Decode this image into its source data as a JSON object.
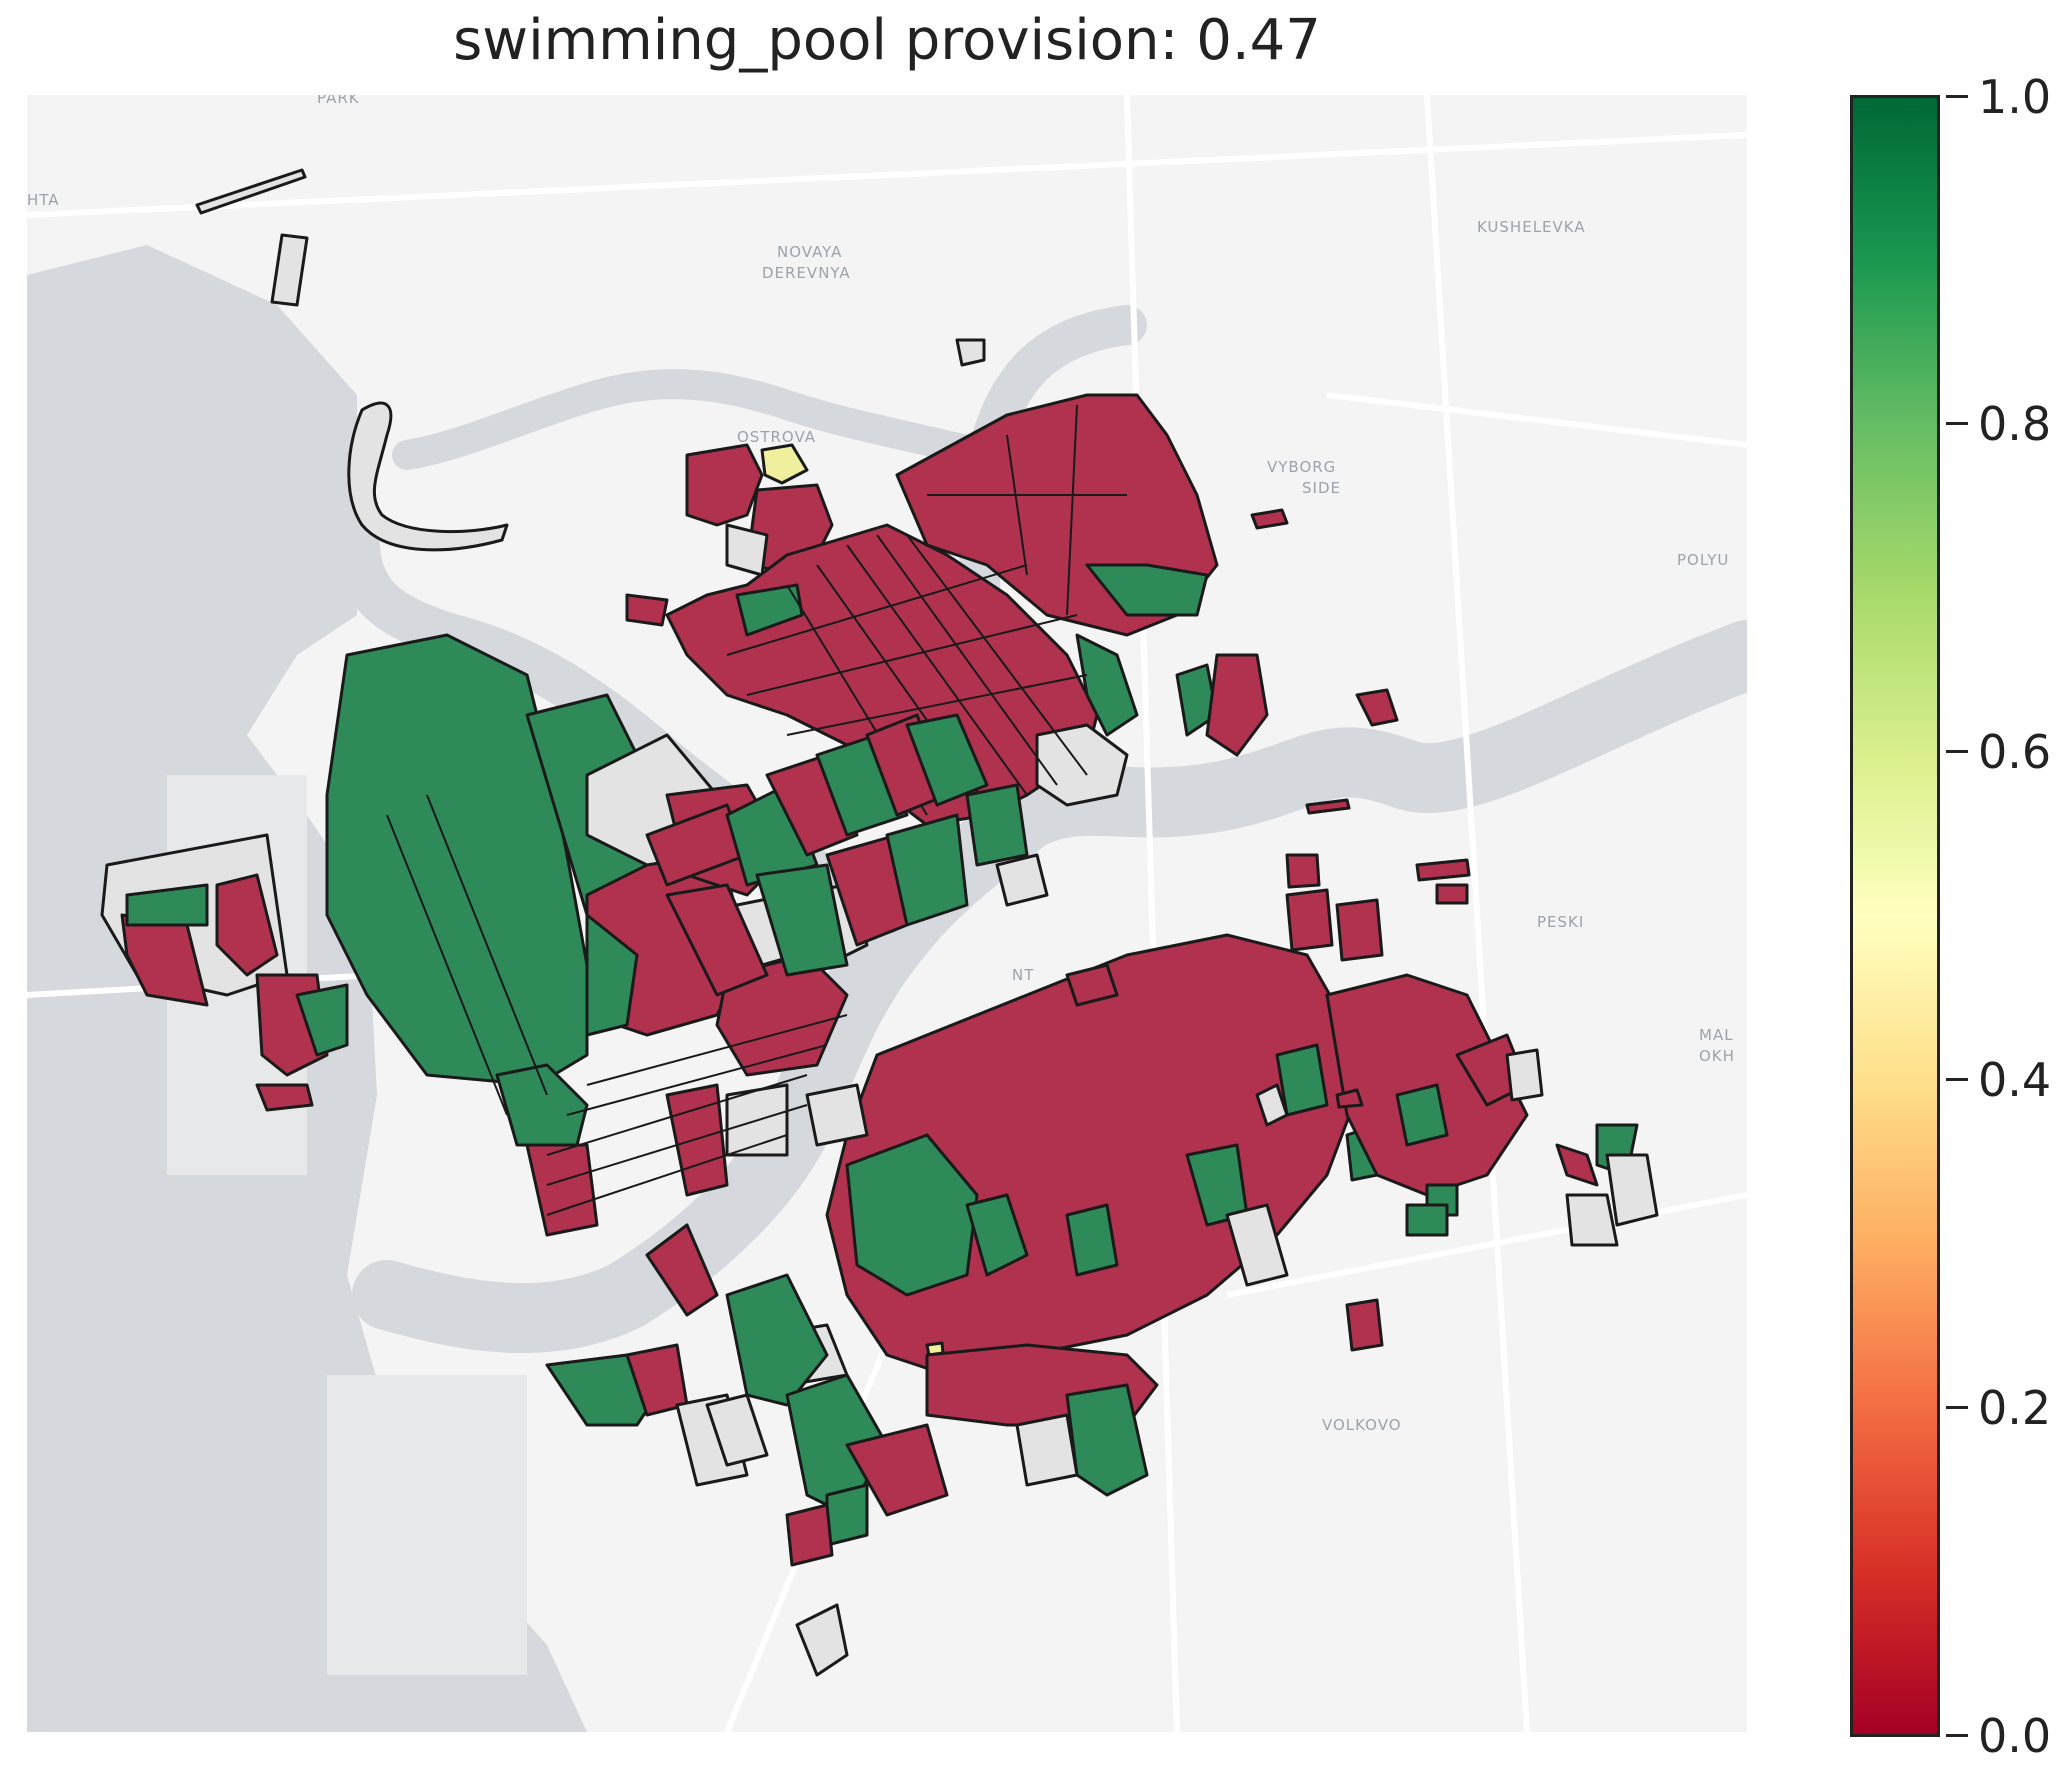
{
  "title": "swimming_pool provision: 0.47",
  "colorbar": {
    "ticks": [
      "1.0",
      "0.8",
      "0.6",
      "0.4",
      "0.2",
      "0.0"
    ],
    "colormap": "RdYlGn",
    "range": [
      0.0,
      1.0
    ]
  },
  "map_labels": [
    "PARK",
    "HTA",
    "NOVAYA",
    "DEREVNYA",
    "OSTROVA",
    "KUSHELEVKA",
    "VYBORG",
    "SIDE",
    "POLYU",
    "PESKI",
    "MAL",
    "OKH",
    "VOLKOVO",
    "NT"
  ],
  "legend_colors": {
    "low": "#b0324f",
    "high": "#2f8a5a",
    "mid": "#f0ef9e",
    "no_data": "#e3e3e3",
    "water": "#d5d9dd",
    "land": "#f4f4f4"
  }
}
